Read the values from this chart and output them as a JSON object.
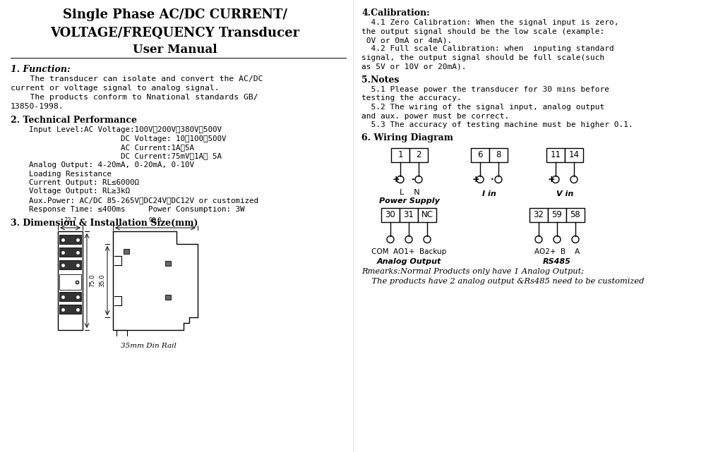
{
  "bg_color": "#ffffff",
  "title_line1": "Single Phase AC/DC CURRENT/",
  "title_line2": "VOLTAGE/FREQUENCY Transducer",
  "title_line3": "User Manual",
  "left_col": {
    "section1_head": "1. Function:",
    "section1_body": [
      "    The transducer can isolate and convert the AC/DC",
      "current or voltage signal to analog signal.",
      "    The products conform to Nnational standards GB/",
      "13850-1998."
    ],
    "section2_head": "2. Technical Performance",
    "section2_body": [
      "    Input Level:AC Voltage:100V、200V、380V、500V",
      "                        DC Voltage: 10、100、500V",
      "                        AC Current:1A、5A",
      "                        DC Current:75mV、1A、 5A",
      "    Analog Output: 4-20mA, 0-20mA, 0-10V",
      "    Loading Resistance",
      "    Current Output: RL≤6000Ω",
      "    Voltage Output: RL≥3kΩ",
      "    Aux.Power: AC/DC 85-265V、DC24V、DC12V or customized",
      "    Response Time: ≤400ms     Power Consumption: 3W"
    ],
    "section3_head": "3. Dimension & Installation Size(mm)"
  },
  "right_col": {
    "section4_head": "4.Calibration:",
    "section4_body": [
      "  4.1 Zero Calibration: When the signal input is zero,",
      "the output signal should be the low scale (example:",
      " 0V or 0mA or 4mA).",
      "  4.2 Full scale Calibration: when  inputing standard",
      "signal, the output signal should be full scale(such",
      "as 5V or 10V or 20mA)."
    ],
    "section5_head": "5.Notes",
    "section5_body": [
      "  5.1 Please power the transducer for 30 mins before",
      "testing the accuracy.",
      "  5.2 The wiring of the signal input, analog output",
      "and aux. power must be correct.",
      "  5.3 The accuracy of testing machine must be higher 0.1."
    ],
    "section6_head": "6. Wiring Diagram",
    "top_blocks": [
      {
        "terminals": [
          "1",
          "2"
        ],
        "plus_minus": [
          "+",
          "-"
        ],
        "sub": "L    N",
        "name": "Power Supply"
      },
      {
        "terminals": [
          "6",
          "8"
        ],
        "plus_minus": [
          "+",
          "·"
        ],
        "sub": "",
        "name": "I in"
      },
      {
        "terminals": [
          "11",
          "14"
        ],
        "plus_minus": [
          "+",
          ""
        ],
        "sub": "",
        "name": "V in"
      }
    ],
    "bot_blocks": [
      {
        "terminals": [
          "30",
          "31",
          "NC"
        ],
        "label": "COM  AO1+  Backup",
        "title": "Analog Output"
      },
      {
        "terminals": [
          "32",
          "59",
          "58"
        ],
        "label": "AO2+  B    A",
        "title": "RS485"
      }
    ],
    "remarks": [
      "Rmearks:Normal Products only have 1 Analog Output;",
      "    The products have 2 analog output &Rs485 need to be customized"
    ]
  }
}
